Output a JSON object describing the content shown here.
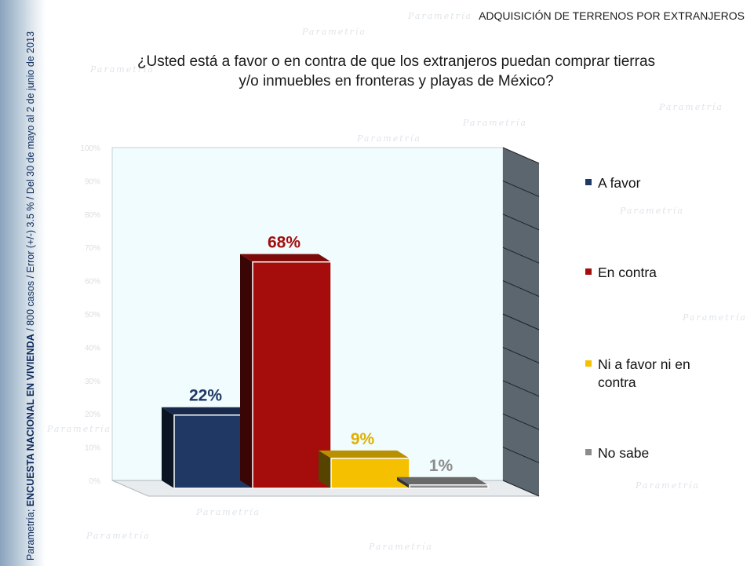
{
  "header": {
    "title": "ADQUISICIÓN DE TERRENOS POR EXTRANJEROS"
  },
  "side_note": {
    "source": "Parametría;",
    "survey": "ENCUESTA NACIONAL EN VIVIENDA",
    "details": "/ 800 casos / Error (+/-) 3.5 % / Del 30 de mayo al 2 de junio de 2013"
  },
  "watermark": "Parametría",
  "chart_data": {
    "type": "bar",
    "title": "¿Usted está a favor o en contra de que los extranjeros puedan comprar tierras y/o inmuebles en fronteras y playas de México?",
    "title_line1": "¿Usted está a favor o en contra de que los extranjeros puedan comprar tierras",
    "title_line2": "y/o inmuebles en fronteras y playas de México?",
    "categories": [
      "A favor",
      "En contra",
      "Ni a favor ni en contra",
      "No sabe"
    ],
    "values": [
      22,
      68,
      9,
      1
    ],
    "data_labels": [
      "22%",
      "68%",
      "9%",
      "1%"
    ],
    "colors": [
      "#1f3864",
      "#a50d0d",
      "#f5c000",
      "#8c8c8c"
    ],
    "label_colors": [
      "#1f3864",
      "#a50d0d",
      "#e0b000",
      "#8c8c8c"
    ],
    "ylim": [
      0,
      100
    ],
    "yticks": [
      "0%",
      "10%",
      "20%",
      "30%",
      "40%",
      "50%",
      "60%",
      "70%",
      "80%",
      "90%",
      "100%"
    ],
    "legend_placement": "right",
    "legend": [
      {
        "label": "A favor",
        "color": "#1f3864"
      },
      {
        "label": "En contra",
        "color": "#a50d0d"
      },
      {
        "label": "Ni a favor ni en contra",
        "color": "#f5c000",
        "line1": "Ni a favor ni en",
        "line2": "contra"
      },
      {
        "label": "No sabe",
        "color": "#8c8c8c"
      }
    ],
    "plot_background": "#f0fcfd",
    "side_wall_color": "#5c666f",
    "grid": true
  }
}
